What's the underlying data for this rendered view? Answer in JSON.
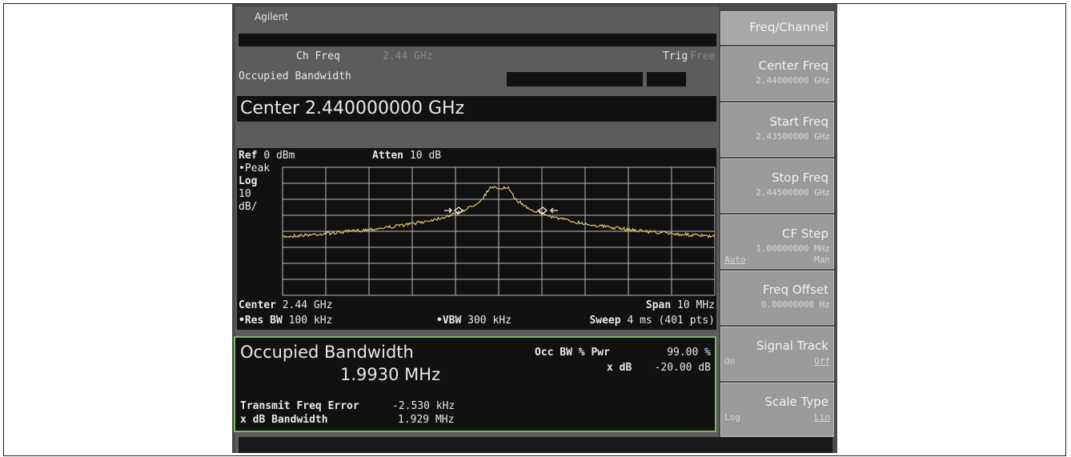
{
  "header": {
    "brand": "Agilent",
    "ch_freq": {
      "label": "Ch Freq",
      "value": "2.44 GHz"
    },
    "trig": {
      "label": "Trig",
      "value": "Free"
    },
    "measurement": "Occupied Bandwidth"
  },
  "active_function": "Center 2.440000000 GHz",
  "graph": {
    "ref": {
      "label": "Ref",
      "value": "0 dBm"
    },
    "atten": {
      "label": "Atten",
      "value": "10 dB"
    },
    "detector": "•Peak",
    "scale": "Log",
    "scale_div": "10",
    "scale_unit": "dB/",
    "center": {
      "label": "Center",
      "value": "2.44 GHz"
    },
    "span": {
      "label": "Span",
      "value": "10 MHz"
    },
    "res_bw": {
      "label": "•Res BW",
      "value": "100 kHz"
    },
    "vbw": {
      "label": "•VBW",
      "value": "300 kHz"
    },
    "sweep": {
      "label": "Sweep",
      "value": "4 ms (401 pts)"
    }
  },
  "results": {
    "title": "Occupied Bandwidth",
    "occupied_bw": "1.9930 MHz",
    "occ_bw_pwr": {
      "label": "Occ BW % Pwr",
      "value": "99.00 %"
    },
    "x_db": {
      "label": "x dB",
      "value": "-20.00 dB"
    },
    "transmit_freq_error": {
      "label": "Transmit Freq Error",
      "value": "-2.530 kHz"
    },
    "x_db_bandwidth": {
      "label": "x dB Bandwidth",
      "value": "1.929 MHz"
    }
  },
  "softkeys": {
    "menu": "Freq/Channel",
    "keys": [
      {
        "label": "Center Freq",
        "value": "2.44000000 GHz"
      },
      {
        "label": "Start Freq",
        "value": "2.43500000 GHz"
      },
      {
        "label": "Stop Freq",
        "value": "2.44500000 GHz"
      },
      {
        "label": "CF Step",
        "value": "1.00000000 MHz",
        "left": "Auto",
        "right": "Man"
      },
      {
        "label": "Freq Offset",
        "value": "0.00000000 Hz"
      },
      {
        "label": "Signal Track",
        "left": "On",
        "right": "Off"
      },
      {
        "label": "Scale Type",
        "left": "Log",
        "right": "Lin"
      }
    ]
  }
}
